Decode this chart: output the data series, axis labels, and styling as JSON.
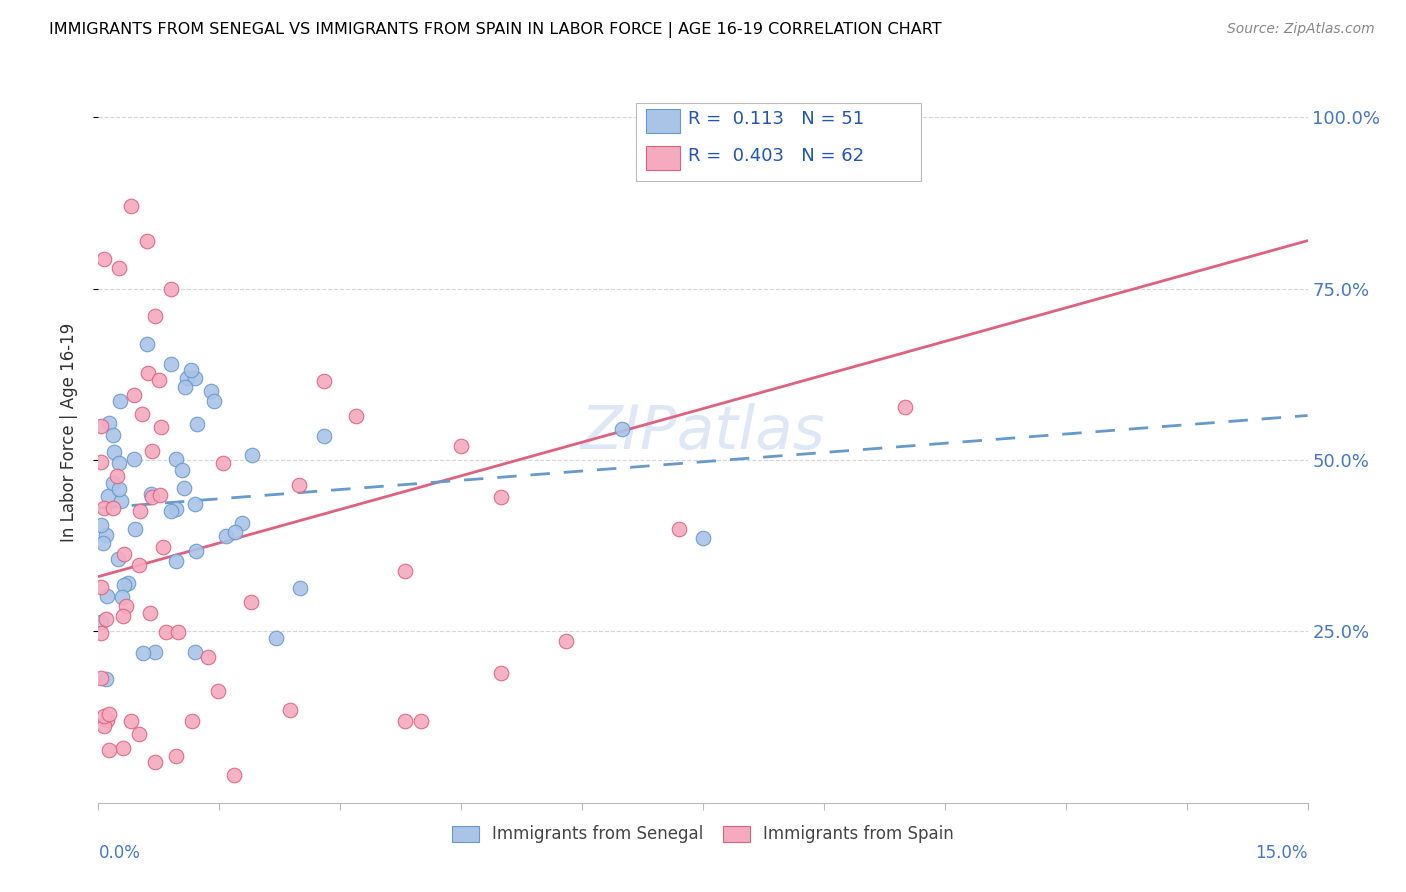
{
  "title": "IMMIGRANTS FROM SENEGAL VS IMMIGRANTS FROM SPAIN IN LABOR FORCE | AGE 16-19 CORRELATION CHART",
  "source": "Source: ZipAtlas.com",
  "ylabel": "In Labor Force | Age 16-19",
  "ytick_labels": [
    "25.0%",
    "50.0%",
    "75.0%",
    "100.0%"
  ],
  "ytick_values": [
    0.25,
    0.5,
    0.75,
    1.0
  ],
  "xlim": [
    0.0,
    0.15
  ],
  "ylim": [
    0.0,
    1.08
  ],
  "color_senegal": "#aac4e8",
  "color_spain": "#f5aabf",
  "color_senegal_line": "#6699cc",
  "color_spain_line": "#e06080",
  "watermark": "ZIPatlas",
  "sen_line_x0": 0.0,
  "sen_line_y0": 0.43,
  "sen_line_x1": 0.15,
  "sen_line_y1": 0.565,
  "spa_line_x0": 0.0,
  "spa_line_y0": 0.33,
  "spa_line_x1": 0.15,
  "spa_line_y1": 0.82,
  "legend_r1": "0.113",
  "legend_n1": "51",
  "legend_r2": "0.403",
  "legend_n2": "62"
}
